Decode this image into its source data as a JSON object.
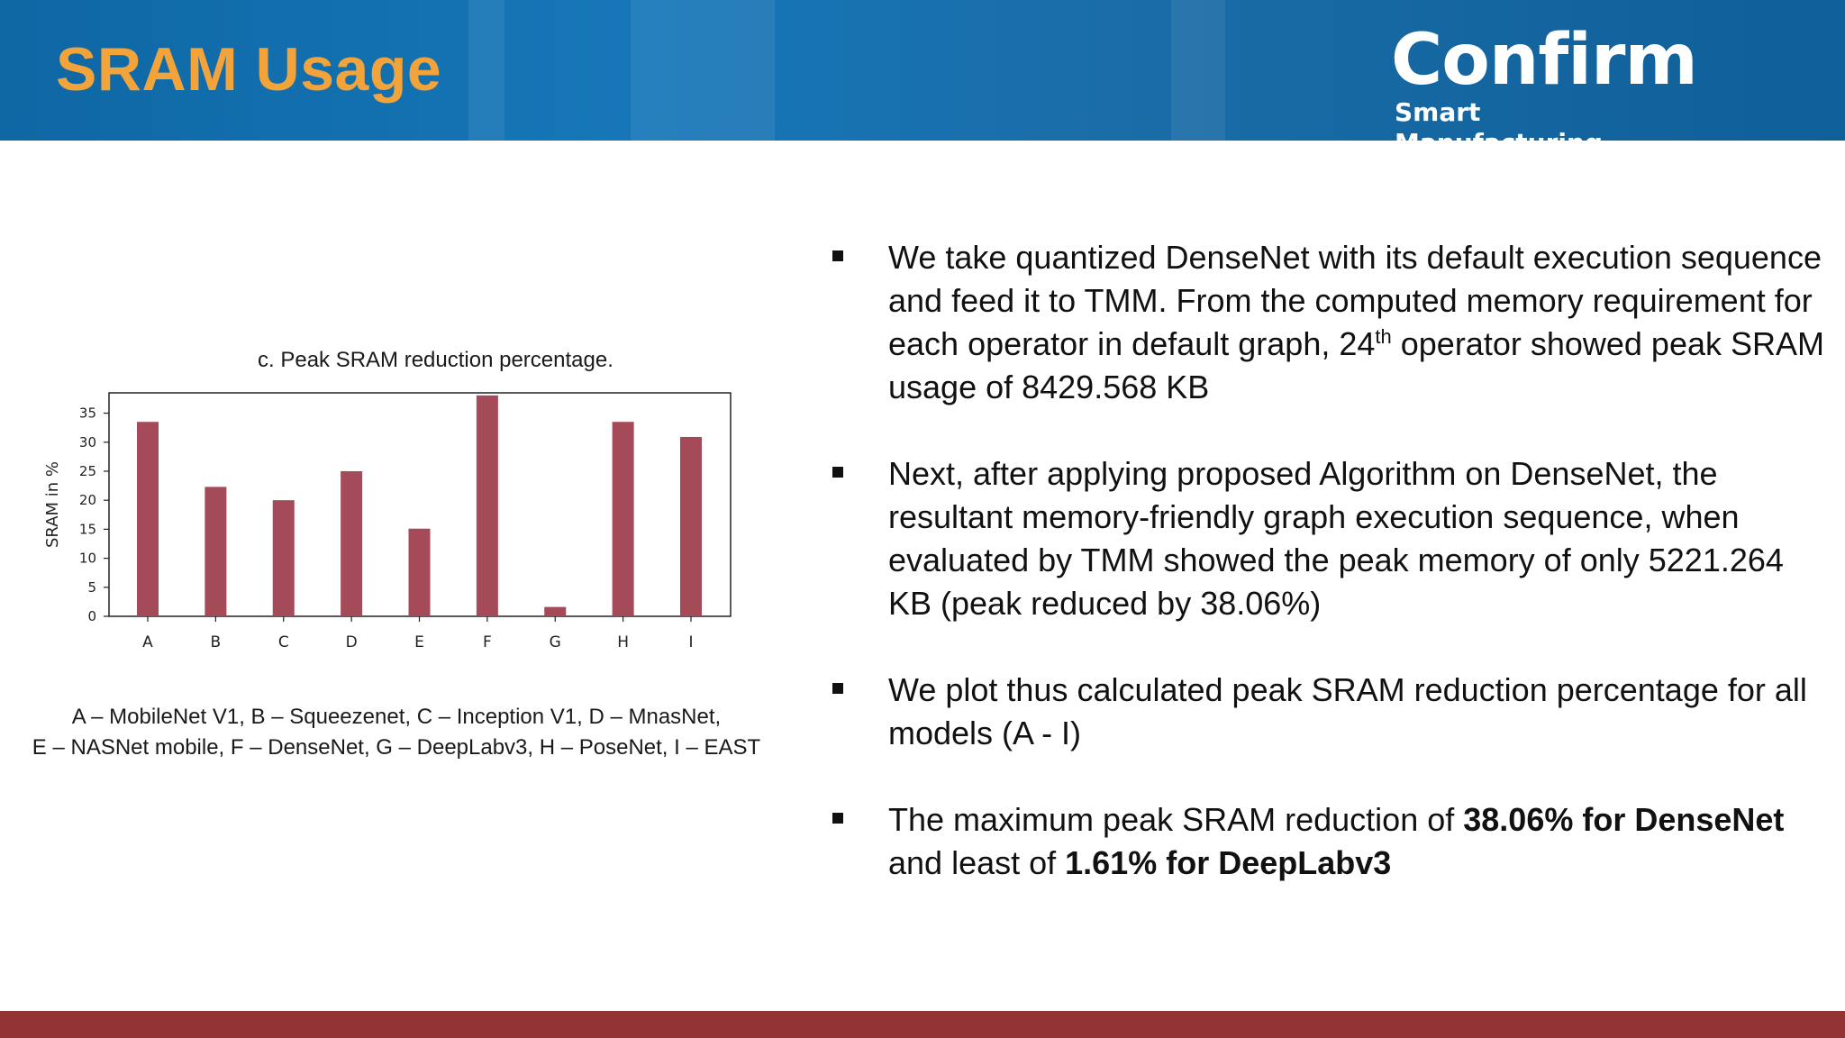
{
  "slide": {
    "title": "SRAM Usage",
    "logo_main": "Confirm",
    "logo_sub": "Smart Manufacturing",
    "header_color": "#1672b0",
    "title_color": "#f2a33a",
    "footer_color": "#923335"
  },
  "chart_data": {
    "type": "bar",
    "title": "c. Peak SRAM reduction percentage.",
    "ylabel": "SRAM  in %",
    "xlabel": "",
    "categories": [
      "A",
      "B",
      "C",
      "D",
      "E",
      "F",
      "G",
      "H",
      "I"
    ],
    "values": [
      33.5,
      22.3,
      20.0,
      25.0,
      15.1,
      38.06,
      1.61,
      33.5,
      30.9
    ],
    "yticks": [
      0,
      5,
      10,
      15,
      20,
      25,
      30,
      35
    ],
    "ylim": [
      0,
      38.5
    ],
    "bar_color": "#a44a58",
    "grid": false,
    "legend": "none"
  },
  "caption": {
    "line1": "A – MobileNet V1, B – Squeezenet, C – Inception V1, D – MnasNet,",
    "line2": "E – NASNet mobile, F – DenseNet, G – DeepLabv3, H – PoseNet, I – EAST"
  },
  "bullets": [
    {
      "pre": "We take quantized DenseNet with its default execution sequence and feed it to TMM. From the computed memory requirement for each operator in default graph, 24",
      "sup": "th",
      "post": " operator showed peak SRAM usage of 8429.568 KB"
    },
    {
      "text": "Next, after applying proposed Algorithm on DenseNet, the resultant memory-friendly graph execution sequence, when evaluated by TMM showed the peak memory of only 5221.264 KB (peak reduced by 38.06%)"
    },
    {
      "text": "We plot thus calculated peak SRAM reduction percentage for all models (A - I)"
    },
    {
      "pre": "The maximum peak SRAM reduction of ",
      "bold1": "38.06% for DenseNet",
      "mid": " and least of ",
      "bold2": "1.61% for DeepLabv3",
      "post": ""
    }
  ]
}
